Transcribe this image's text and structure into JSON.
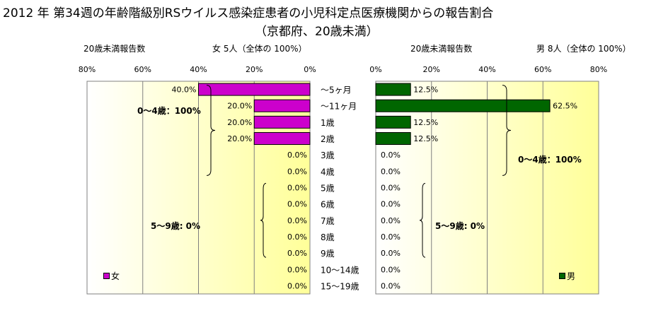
{
  "title_line1": "2012 年 第34週の年齢階級別RSウイルス感染症患者の小児科定点医療機関からの報告割合",
  "title_line2": "（京都府、20歳未満）",
  "left_header": {
    "count_label": "20歳未満報告数",
    "summary": "女  5人（全体の  100%）"
  },
  "right_header": {
    "count_label": "20歳未満報告数",
    "summary": "男  8人（全体の  100%）"
  },
  "colors": {
    "female": "#cc00cc",
    "male": "#006600",
    "plot_bg_start": "#ffffff",
    "plot_bg_end": "#ffff99",
    "grid": "#808080"
  },
  "chart_data": {
    "type": "bar",
    "categories": [
      "～5ヶ月",
      "～11ヶ月",
      "1歳",
      "2歳",
      "3歳",
      "4歳",
      "5歳",
      "6歳",
      "7歳",
      "8歳",
      "9歳",
      "10～14歳",
      "15～19歳"
    ],
    "axis_ticks": [
      "80%",
      "60%",
      "40%",
      "20%",
      "0%"
    ],
    "axis_ticks_right": [
      "0%",
      "20%",
      "40%",
      "60%",
      "80%"
    ],
    "xlim": [
      0,
      80
    ],
    "series": [
      {
        "name": "女",
        "values": [
          40.0,
          20.0,
          20.0,
          20.0,
          0.0,
          0.0,
          0.0,
          0.0,
          0.0,
          0.0,
          0.0,
          0.0,
          0.0
        ],
        "labels": [
          "40.0%",
          "20.0%",
          "20.0%",
          "20.0%",
          "0.0%",
          "0.0%",
          "0.0%",
          "0.0%",
          "0.0%",
          "0.0%",
          "0.0%",
          "0.0%",
          "0.0%"
        ]
      },
      {
        "name": "男",
        "values": [
          12.5,
          62.5,
          12.5,
          12.5,
          0.0,
          0.0,
          0.0,
          0.0,
          0.0,
          0.0,
          0.0,
          0.0,
          0.0
        ],
        "labels": [
          "12.5%",
          "62.5%",
          "12.5%",
          "12.5%",
          "0.0%",
          "0.0%",
          "0.0%",
          "0.0%",
          "0.0%",
          "0.0%",
          "0.0%",
          "0.0%",
          "0.0%"
        ]
      }
    ],
    "annotations": {
      "female_0_4": "0～4歳：100%",
      "female_5_9": "5～9歳:  0%",
      "male_0_4": "0～4歳：100%",
      "male_5_9": "5～9歳:  0%"
    },
    "legend": [
      "女",
      "男"
    ]
  }
}
